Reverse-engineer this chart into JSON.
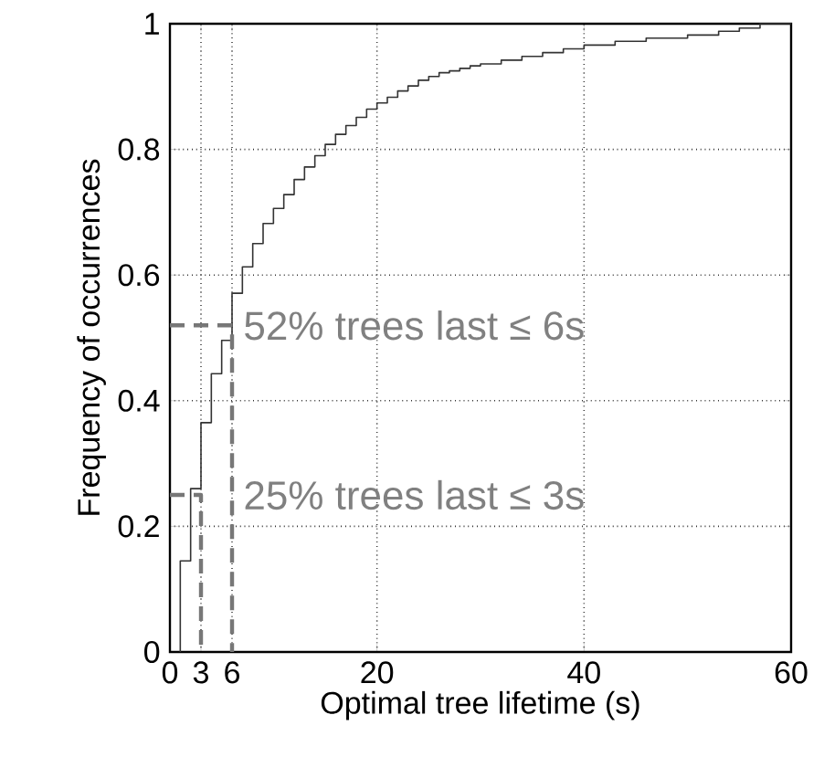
{
  "chart_data": {
    "type": "step",
    "xlabel": "Optimal tree lifetime (s)",
    "ylabel": "Frequency of occurrences",
    "xlim": [
      0,
      60
    ],
    "ylim": [
      0,
      1
    ],
    "xticks": [
      0,
      3,
      6,
      20,
      40,
      60
    ],
    "yticks": [
      0,
      0.2,
      0.4,
      0.6,
      0.8,
      1
    ],
    "grid": true,
    "series": [
      {
        "color": "#333333",
        "x": [
          1,
          1,
          2,
          3,
          4,
          5,
          6,
          7,
          8,
          9,
          10,
          11,
          12,
          13,
          14,
          15,
          16,
          17,
          18,
          19,
          20,
          21,
          22,
          23,
          24,
          25,
          26,
          27,
          28,
          29,
          30,
          32,
          34,
          36,
          38,
          40,
          43,
          46,
          50,
          53,
          55,
          57,
          60
        ],
        "values": [
          0,
          0.145,
          0.26,
          0.365,
          0.443,
          0.496,
          0.571,
          0.613,
          0.65,
          0.682,
          0.706,
          0.728,
          0.752,
          0.772,
          0.79,
          0.808,
          0.824,
          0.838,
          0.851,
          0.864,
          0.874,
          0.883,
          0.893,
          0.901,
          0.91,
          0.916,
          0.922,
          0.925,
          0.929,
          0.933,
          0.936,
          0.942,
          0.948,
          0.954,
          0.96,
          0.966,
          0.972,
          0.977,
          0.982,
          0.988,
          0.993,
          1.0,
          1.0
        ]
      },
      {
        "type": "line",
        "line_style": "dashed",
        "color": "#777777",
        "x": [
          0,
          6,
          6
        ],
        "values": [
          0.52,
          0.52,
          0
        ]
      },
      {
        "type": "line",
        "line_style": "dashed",
        "color": "#777777",
        "x": [
          0,
          3,
          3
        ],
        "values": [
          0.25,
          0.25,
          0
        ]
      }
    ],
    "annotations": [
      {
        "text": "52% trees last ≤ 6s",
        "x": 6,
        "y": 0.52
      },
      {
        "text": "25% trees last ≤ 3s",
        "x": 3,
        "y": 0.25
      }
    ]
  }
}
